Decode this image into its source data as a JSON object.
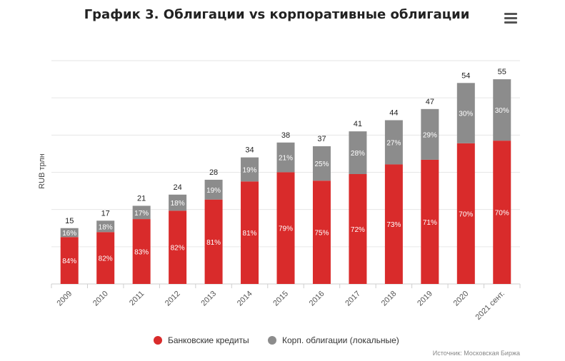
{
  "title": "График 3. Облигации vs корпоративные облигации",
  "menu_icon": "hamburger-menu-icon",
  "source": "Источник: Московская Биржа",
  "colors": {
    "bank": "#d92b2b",
    "bonds": "#8c8c8c",
    "grid": "#e6e6e6"
  },
  "chart_data": {
    "type": "bar",
    "stacked": true,
    "title": "График 3. Облигации vs корпоративные облигации",
    "xlabel": "",
    "ylabel": "RUB трлн",
    "ylim": [
      0,
      60
    ],
    "grid": true,
    "legend_position": "bottom",
    "categories": [
      "2009",
      "2010",
      "2011",
      "2012",
      "2013",
      "2014",
      "2015",
      "2016",
      "2017",
      "2018",
      "2019",
      "2020",
      "2021 сент."
    ],
    "totals": [
      15,
      17,
      21,
      24,
      28,
      34,
      38,
      37,
      41,
      44,
      47,
      54,
      55
    ],
    "series": [
      {
        "name": "Банковские кредиты",
        "share_labels": [
          "84%",
          "82%",
          "83%",
          "82%",
          "81%",
          "81%",
          "79%",
          "75%",
          "72%",
          "73%",
          "71%",
          "70%",
          "70%"
        ]
      },
      {
        "name": "Корп. облигации (локальные)",
        "share_labels": [
          "16%",
          "18%",
          "17%",
          "18%",
          "19%",
          "19%",
          "21%",
          "25%",
          "28%",
          "27%",
          "29%",
          "30%",
          "30%"
        ]
      }
    ]
  }
}
